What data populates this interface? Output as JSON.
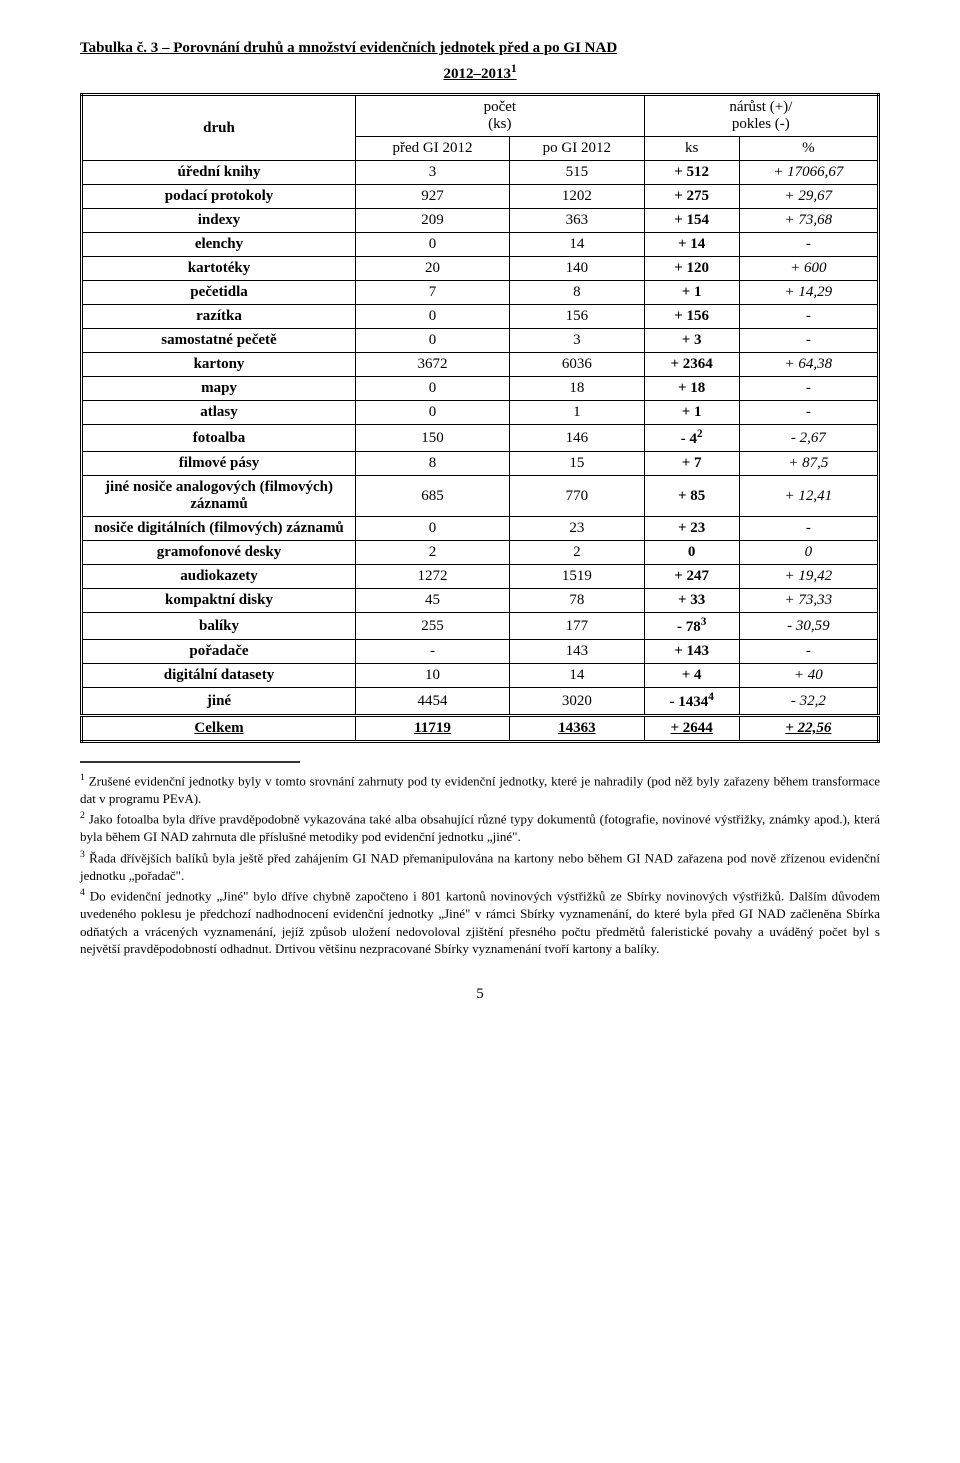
{
  "title": "Tabulka č. 3 – Porovnání druhů a množství evidenčních jednotek před a po GI NAD",
  "subtitle": "2012–2013",
  "subtitle_sup": "1",
  "header": {
    "druh": "druh",
    "pocet": "počet",
    "ks": "(ks)",
    "narust": "nárůst (+)/",
    "pokles": "pokles (-)",
    "pred": "před GI 2012",
    "po": "po GI 2012",
    "ks2": "ks",
    "pct": "%"
  },
  "rows": [
    {
      "name": "úřední knihy",
      "pre": "3",
      "post": "515",
      "ks": "+ 512",
      "pct": "+ 17066,67"
    },
    {
      "name": "podací protokoly",
      "pre": "927",
      "post": "1202",
      "ks": "+ 275",
      "pct": "+ 29,67"
    },
    {
      "name": "indexy",
      "pre": "209",
      "post": "363",
      "ks": "+ 154",
      "pct": "+ 73,68"
    },
    {
      "name": "elenchy",
      "pre": "0",
      "post": "14",
      "ks": "+ 14",
      "pct": "-"
    },
    {
      "name": "kartotéky",
      "pre": "20",
      "post": "140",
      "ks": "+ 120",
      "pct": "+ 600"
    },
    {
      "name": "pečetidla",
      "pre": "7",
      "post": "8",
      "ks": "+ 1",
      "pct": "+ 14,29"
    },
    {
      "name": "razítka",
      "pre": "0",
      "post": "156",
      "ks": "+ 156",
      "pct": "-"
    },
    {
      "name": "samostatné pečetě",
      "pre": "0",
      "post": "3",
      "ks": "+ 3",
      "pct": "-"
    },
    {
      "name": "kartony",
      "pre": "3672",
      "post": "6036",
      "ks": "+ 2364",
      "pct": "+ 64,38"
    },
    {
      "name": "mapy",
      "pre": "0",
      "post": "18",
      "ks": "+ 18",
      "pct": "-"
    },
    {
      "name": "atlasy",
      "pre": "0",
      "post": "1",
      "ks": "+ 1",
      "pct": "-"
    },
    {
      "name": "fotoalba",
      "pre": "150",
      "post": "146",
      "ks": "- 4",
      "ks_sup": "2",
      "pct": "- 2,67"
    },
    {
      "name": "filmové pásy",
      "pre": "8",
      "post": "15",
      "ks": "+ 7",
      "pct": "+ 87,5"
    },
    {
      "name": "jiné nosiče analogových (filmových) záznamů",
      "pre": "685",
      "post": "770",
      "ks": "+ 85",
      "pct": "+ 12,41"
    },
    {
      "name": "nosiče digitálních (filmových) záznamů",
      "pre": "0",
      "post": "23",
      "ks": "+ 23",
      "pct": "-"
    },
    {
      "name": "gramofonové desky",
      "pre": "2",
      "post": "2",
      "ks": "0",
      "pct": "0"
    },
    {
      "name": "audiokazety",
      "pre": "1272",
      "post": "1519",
      "ks": "+ 247",
      "pct": "+ 19,42"
    },
    {
      "name": "kompaktní disky",
      "pre": "45",
      "post": "78",
      "ks": "+ 33",
      "pct": "+ 73,33"
    },
    {
      "name": "balíky",
      "pre": "255",
      "post": "177",
      "ks": "- 78",
      "ks_sup": "3",
      "pct": "- 30,59"
    },
    {
      "name": "pořadače",
      "pre": "-",
      "post": "143",
      "ks": "+ 143",
      "pct": "-"
    },
    {
      "name": "digitální datasety",
      "pre": "10",
      "post": "14",
      "ks": "+ 4",
      "pct": "+ 40"
    },
    {
      "name": "jiné",
      "pre": "4454",
      "post": "3020",
      "ks": "- 1434",
      "ks_sup": "4",
      "pct": "- 32,2"
    }
  ],
  "total": {
    "name": "Celkem",
    "pre": "11719",
    "post": "14363",
    "ks": "+ 2644",
    "pct": "+ 22,56"
  },
  "footnotes": [
    {
      "num": "1",
      "text": "Zrušené evidenční jednotky byly v tomto srovnání zahrnuty pod ty evidenční jednotky, které je nahradily (pod něž byly zařazeny během transformace dat v programu PEvA)."
    },
    {
      "num": "2",
      "text": "Jako fotoalba byla dříve pravděpodobně vykazována také alba obsahující různé typy dokumentů (fotografie, novinové výstřižky, známky apod.), která byla během GI NAD zahrnuta dle příslušné metodiky pod evidenční jednotku „jiné\"."
    },
    {
      "num": "3",
      "text": "Řada dřívějších balíků byla ještě před zahájením GI NAD přemanipulována na kartony nebo během GI NAD zařazena pod nově zřízenou evidenční jednotku „pořadač\"."
    },
    {
      "num": "4",
      "text": "Do evidenční jednotky „Jiné\" bylo dříve chybně započteno i 801 kartonů novinových výstřižků ze Sbírky novinových výstřižků. Dalším důvodem uvedeného poklesu je předchozí nadhodnocení evidenční jednotky „Jiné\" v rámci Sbírky vyznamenání, do které byla před GI NAD začleněna Sbírka odňatých a vrácených vyznamenání, jejíž způsob uložení nedovoloval zjištění přesného počtu předmětů faleristické povahy a uváděný počet byl s největší pravděpodobností odhadnut. Drtivou většinu nezpracované Sbírky vyznamenání tvoří kartony a balíky."
    }
  ],
  "pagenum": "5"
}
